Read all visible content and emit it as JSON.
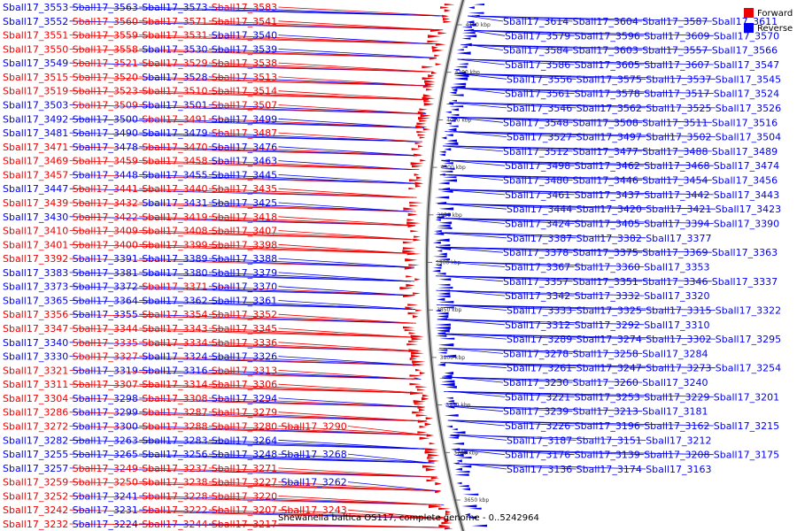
{
  "caption": "Shewanella baltica OS117, complete genome - 0..5242964",
  "legend": [
    {
      "name": "Forward",
      "color": "#ee0000"
    },
    {
      "name": "Reverse",
      "color": "#0000ee"
    }
  ],
  "colors": {
    "forward": "#ee0000",
    "reverse": "#0000ee",
    "backbone": "#555555"
  },
  "ticks": [
    "4150 kbp",
    "4100 kbp",
    "4050 kbp",
    "4000 kbp",
    "3950 kbp",
    "3900 kbp",
    "3850 kbp",
    "3800 kbp",
    "3750 kbp",
    "3700 kbp",
    "3650 kbp"
  ],
  "left_labels": [
    {
      "text": "Sball17_3553",
      "strand": "reverse"
    },
    {
      "text": "Sball17_3563",
      "strand": "reverse"
    },
    {
      "text": "Sball17_3573",
      "strand": "reverse"
    },
    {
      "text": "Sball17_3583",
      "strand": "forward"
    },
    {
      "text": "Sball17_3552",
      "strand": "reverse"
    },
    {
      "text": "Sball17_3560",
      "strand": "forward"
    },
    {
      "text": "Sball17_3571",
      "strand": "forward"
    },
    {
      "text": "Sball17_3541",
      "strand": "forward"
    },
    {
      "text": "Sball17_3551",
      "strand": "forward"
    },
    {
      "text": "Sball17_3559",
      "strand": "forward"
    },
    {
      "text": "Sball17_3531",
      "strand": "forward"
    },
    {
      "text": "Sball17_3540",
      "strand": "reverse"
    },
    {
      "text": "Sball17_3550",
      "strand": "forward"
    },
    {
      "text": "Sball17_3558",
      "strand": "forward"
    },
    {
      "text": "Sball17_3530",
      "strand": "reverse"
    },
    {
      "text": "Sball17_3539",
      "strand": "reverse"
    },
    {
      "text": "Sball17_3549",
      "strand": "reverse"
    },
    {
      "text": "Sball17_3521",
      "strand": "forward"
    },
    {
      "text": "Sball17_3529",
      "strand": "forward"
    },
    {
      "text": "Sball17_3538",
      "strand": "forward"
    },
    {
      "text": "Sball17_3515",
      "strand": "forward"
    },
    {
      "text": "Sball17_3520",
      "strand": "forward"
    },
    {
      "text": "Sball17_3528",
      "strand": "reverse"
    },
    {
      "text": "Sball17_3513",
      "strand": "forward"
    },
    {
      "text": "Sball17_3519",
      "strand": "forward"
    },
    {
      "text": "Sball17_3523",
      "strand": "forward"
    },
    {
      "text": "Sball17_3510",
      "strand": "forward"
    },
    {
      "text": "Sball17_3514",
      "strand": "forward"
    },
    {
      "text": "Sball17_3503",
      "strand": "reverse"
    },
    {
      "text": "Sball17_3509",
      "strand": "forward"
    },
    {
      "text": "Sball17_3501",
      "strand": "reverse"
    },
    {
      "text": "Sball17_3507",
      "strand": "forward"
    },
    {
      "text": "Sball17_3492",
      "strand": "reverse"
    },
    {
      "text": "Sball17_3500",
      "strand": "reverse"
    },
    {
      "text": "Sball17_3491",
      "strand": "forward"
    },
    {
      "text": "Sball17_3499",
      "strand": "reverse"
    },
    {
      "text": "Sball17_3481",
      "strand": "reverse"
    },
    {
      "text": "Sball17_3490",
      "strand": "reverse"
    },
    {
      "text": "Sball17_3479",
      "strand": "reverse"
    },
    {
      "text": "Sball17_3487",
      "strand": "forward"
    },
    {
      "text": "Sball17_3471",
      "strand": "forward"
    },
    {
      "text": "Sball17_3478",
      "strand": "reverse"
    },
    {
      "text": "Sball17_3470",
      "strand": "forward"
    },
    {
      "text": "Sball17_3476",
      "strand": "reverse"
    },
    {
      "text": "Sball17_3469",
      "strand": "forward"
    },
    {
      "text": "Sball17_3459",
      "strand": "forward"
    },
    {
      "text": "Sball17_3458",
      "strand": "forward"
    },
    {
      "text": "Sball17_3463",
      "strand": "reverse"
    },
    {
      "text": "Sball17_3457",
      "strand": "forward"
    },
    {
      "text": "Sball17_3448",
      "strand": "reverse"
    },
    {
      "text": "Sball17_3455",
      "strand": "reverse"
    },
    {
      "text": "Sball17_3445",
      "strand": "reverse"
    },
    {
      "text": "Sball17_3447",
      "strand": "reverse"
    },
    {
      "text": "Sball17_3441",
      "strand": "forward"
    },
    {
      "text": "Sball17_3440",
      "strand": "forward"
    },
    {
      "text": "Sball17_3435",
      "strand": "forward"
    },
    {
      "text": "Sball17_3439",
      "strand": "forward"
    },
    {
      "text": "Sball17_3432",
      "strand": "forward"
    },
    {
      "text": "Sball17_3431",
      "strand": "reverse"
    },
    {
      "text": "Sball17_3425",
      "strand": "reverse"
    },
    {
      "text": "Sball17_3430",
      "strand": "reverse"
    },
    {
      "text": "Sball17_3422",
      "strand": "forward"
    },
    {
      "text": "Sball17_3419",
      "strand": "forward"
    },
    {
      "text": "Sball17_3418",
      "strand": "forward"
    },
    {
      "text": "Sball17_3410",
      "strand": "forward"
    },
    {
      "text": "Sball17_3409",
      "strand": "forward"
    },
    {
      "text": "Sball17_3408",
      "strand": "forward"
    },
    {
      "text": "Sball17_3407",
      "strand": "forward"
    },
    {
      "text": "Sball17_3401",
      "strand": "forward"
    },
    {
      "text": "Sball17_3400",
      "strand": "forward"
    },
    {
      "text": "Sball17_3399",
      "strand": "forward"
    },
    {
      "text": "Sball17_3398",
      "strand": "forward"
    },
    {
      "text": "Sball17_3392",
      "strand": "forward"
    },
    {
      "text": "Sball17_3391",
      "strand": "reverse"
    },
    {
      "text": "Sball17_3389",
      "strand": "reverse"
    },
    {
      "text": "Sball17_3388",
      "strand": "reverse"
    },
    {
      "text": "Sball17_3383",
      "strand": "reverse"
    },
    {
      "text": "Sball17_3381",
      "strand": "reverse"
    },
    {
      "text": "Sball17_3380",
      "strand": "reverse"
    },
    {
      "text": "Sball17_3379",
      "strand": "reverse"
    },
    {
      "text": "Sball17_3373",
      "strand": "reverse"
    },
    {
      "text": "Sball17_3372",
      "strand": "reverse"
    },
    {
      "text": "Sball17_3371",
      "strand": "forward"
    },
    {
      "text": "Sball17_3370",
      "strand": "reverse"
    },
    {
      "text": "Sball17_3365",
      "strand": "reverse"
    },
    {
      "text": "Sball17_3364",
      "strand": "reverse"
    },
    {
      "text": "Sball17_3362",
      "strand": "reverse"
    },
    {
      "text": "Sball17_3361",
      "strand": "reverse"
    },
    {
      "text": "Sball17_3356",
      "strand": "forward"
    },
    {
      "text": "Sball17_3355",
      "strand": "reverse"
    },
    {
      "text": "Sball17_3354",
      "strand": "forward"
    },
    {
      "text": "Sball17_3352",
      "strand": "forward"
    },
    {
      "text": "Sball17_3347",
      "strand": "forward"
    },
    {
      "text": "Sball17_3344",
      "strand": "forward"
    },
    {
      "text": "Sball17_3343",
      "strand": "forward"
    },
    {
      "text": "Sball17_3345",
      "strand": "forward"
    },
    {
      "text": "Sball17_3340",
      "strand": "reverse"
    },
    {
      "text": "Sball17_3335",
      "strand": "forward"
    },
    {
      "text": "Sball17_3334",
      "strand": "forward"
    },
    {
      "text": "Sball17_3336",
      "strand": "forward"
    },
    {
      "text": "Sball17_3330",
      "strand": "reverse"
    },
    {
      "text": "Sball17_3327",
      "strand": "forward"
    },
    {
      "text": "Sball17_3324",
      "strand": "reverse"
    },
    {
      "text": "Sball17_3326",
      "strand": "reverse"
    },
    {
      "text": "Sball17_3321",
      "strand": "forward"
    },
    {
      "text": "Sball17_3319",
      "strand": "reverse"
    },
    {
      "text": "Sball17_3316",
      "strand": "reverse"
    },
    {
      "text": "Sball17_3313",
      "strand": "forward"
    },
    {
      "text": "Sball17_3311",
      "strand": "forward"
    },
    {
      "text": "Sball17_3307",
      "strand": "forward"
    },
    {
      "text": "Sball17_3314",
      "strand": "forward"
    },
    {
      "text": "Sball17_3306",
      "strand": "forward"
    },
    {
      "text": "Sball17_3304",
      "strand": "forward"
    },
    {
      "text": "Sball17_3298",
      "strand": "reverse"
    },
    {
      "text": "Sball17_3308",
      "strand": "forward"
    },
    {
      "text": "Sball17_3294",
      "strand": "reverse"
    },
    {
      "text": "Sball17_3286",
      "strand": "forward"
    },
    {
      "text": "Sball17_3299",
      "strand": "reverse"
    },
    {
      "text": "Sball17_3287",
      "strand": "forward"
    },
    {
      "text": "Sball17_3279",
      "strand": "forward"
    },
    {
      "text": "Sball17_3272",
      "strand": "forward"
    },
    {
      "text": "Sball17_3300",
      "strand": "reverse"
    },
    {
      "text": "Sball17_3288",
      "strand": "forward"
    },
    {
      "text": "Sball17_3280",
      "strand": "forward"
    },
    {
      "text": "Sball17_3290",
      "strand": "forward"
    },
    {
      "text": "Sball17_3282",
      "strand": "reverse"
    },
    {
      "text": "Sball17_3263",
      "strand": "reverse"
    },
    {
      "text": "Sball17_3283",
      "strand": "reverse"
    },
    {
      "text": "Sball17_3264",
      "strand": "reverse"
    },
    {
      "text": "Sball17_3255",
      "strand": "reverse"
    },
    {
      "text": "Sball17_3265",
      "strand": "reverse"
    },
    {
      "text": "Sball17_3256",
      "strand": "reverse"
    },
    {
      "text": "Sball17_3248",
      "strand": "reverse"
    },
    {
      "text": "Sball17_3268",
      "strand": "reverse"
    },
    {
      "text": "Sball17_3257",
      "strand": "reverse"
    },
    {
      "text": "Sball17_3249",
      "strand": "forward"
    },
    {
      "text": "Sball17_3237",
      "strand": "forward"
    },
    {
      "text": "Sball17_3271",
      "strand": "forward"
    },
    {
      "text": "Sball17_3259",
      "strand": "forward"
    },
    {
      "text": "Sball17_3250",
      "strand": "forward"
    },
    {
      "text": "Sball17_3238",
      "strand": "forward"
    },
    {
      "text": "Sball17_3227",
      "strand": "forward"
    },
    {
      "text": "Sball17_3262",
      "strand": "reverse"
    },
    {
      "text": "Sball17_3252",
      "strand": "forward"
    },
    {
      "text": "Sball17_3241",
      "strand": "reverse"
    },
    {
      "text": "Sball17_3228",
      "strand": "forward"
    },
    {
      "text": "Sball17_3220",
      "strand": "forward"
    },
    {
      "text": "Sball17_3242",
      "strand": "forward"
    },
    {
      "text": "Sball17_3231",
      "strand": "reverse"
    },
    {
      "text": "Sball17_3222",
      "strand": "forward"
    },
    {
      "text": "Sball17_3207",
      "strand": "forward"
    },
    {
      "text": "Sball17_3243",
      "strand": "forward"
    },
    {
      "text": "Sball17_3232",
      "strand": "forward"
    },
    {
      "text": "Sball17_3224",
      "strand": "reverse"
    },
    {
      "text": "Sball17_3244",
      "strand": "forward"
    },
    {
      "text": "Sball17_3217",
      "strand": "forward"
    }
  ],
  "right_labels": [
    {
      "text": "Sball17_3614",
      "strand": "reverse"
    },
    {
      "text": "Sball17_3604",
      "strand": "reverse"
    },
    {
      "text": "Sball17_3587",
      "strand": "reverse"
    },
    {
      "text": "Sball17_3611",
      "strand": "reverse"
    },
    {
      "text": "Sball17_3579",
      "strand": "reverse"
    },
    {
      "text": "Sball17_3596",
      "strand": "reverse"
    },
    {
      "text": "Sball17_3609",
      "strand": "reverse"
    },
    {
      "text": "Sball17_3570",
      "strand": "reverse"
    },
    {
      "text": "Sball17_3584",
      "strand": "reverse"
    },
    {
      "text": "Sball17_3603",
      "strand": "reverse"
    },
    {
      "text": "Sball17_3557",
      "strand": "reverse"
    },
    {
      "text": "Sball17_3566",
      "strand": "reverse"
    },
    {
      "text": "Sball17_3586",
      "strand": "reverse"
    },
    {
      "text": "Sball17_3605",
      "strand": "reverse"
    },
    {
      "text": "Sball17_3607",
      "strand": "reverse"
    },
    {
      "text": "Sball17_3547",
      "strand": "reverse"
    },
    {
      "text": "Sball17_3556",
      "strand": "reverse"
    },
    {
      "text": "Sball17_3575",
      "strand": "reverse"
    },
    {
      "text": "Sball17_3537",
      "strand": "reverse"
    },
    {
      "text": "Sball17_3545",
      "strand": "reverse"
    },
    {
      "text": "Sball17_3561",
      "strand": "reverse"
    },
    {
      "text": "Sball17_3578",
      "strand": "reverse"
    },
    {
      "text": "Sball17_3517",
      "strand": "reverse"
    },
    {
      "text": "Sball17_3524",
      "strand": "reverse"
    },
    {
      "text": "Sball17_3546",
      "strand": "reverse"
    },
    {
      "text": "Sball17_3562",
      "strand": "reverse"
    },
    {
      "text": "Sball17_3525",
      "strand": "reverse"
    },
    {
      "text": "Sball17_3526",
      "strand": "reverse"
    },
    {
      "text": "Sball17_3548",
      "strand": "reverse"
    },
    {
      "text": "Sball17_3508",
      "strand": "reverse"
    },
    {
      "text": "Sball17_3511",
      "strand": "reverse"
    },
    {
      "text": "Sball17_3516",
      "strand": "reverse"
    },
    {
      "text": "Sball17_3527",
      "strand": "reverse"
    },
    {
      "text": "Sball17_3497",
      "strand": "reverse"
    },
    {
      "text": "Sball17_3502",
      "strand": "reverse"
    },
    {
      "text": "Sball17_3504",
      "strand": "reverse"
    },
    {
      "text": "Sball17_3512",
      "strand": "reverse"
    },
    {
      "text": "Sball17_3477",
      "strand": "reverse"
    },
    {
      "text": "Sball17_3488",
      "strand": "reverse"
    },
    {
      "text": "Sball17_3489",
      "strand": "reverse"
    },
    {
      "text": "Sball17_3498",
      "strand": "reverse"
    },
    {
      "text": "Sball17_3462",
      "strand": "reverse"
    },
    {
      "text": "Sball17_3468",
      "strand": "reverse"
    },
    {
      "text": "Sball17_3474",
      "strand": "reverse"
    },
    {
      "text": "Sball17_3480",
      "strand": "reverse"
    },
    {
      "text": "Sball17_3446",
      "strand": "reverse"
    },
    {
      "text": "Sball17_3454",
      "strand": "reverse"
    },
    {
      "text": "Sball17_3456",
      "strand": "reverse"
    },
    {
      "text": "Sball17_3461",
      "strand": "reverse"
    },
    {
      "text": "Sball17_3437",
      "strand": "reverse"
    },
    {
      "text": "Sball17_3442",
      "strand": "reverse"
    },
    {
      "text": "Sball17_3443",
      "strand": "reverse"
    },
    {
      "text": "Sball17_3444",
      "strand": "reverse"
    },
    {
      "text": "Sball17_3420",
      "strand": "reverse"
    },
    {
      "text": "Sball17_3421",
      "strand": "reverse"
    },
    {
      "text": "Sball17_3423",
      "strand": "reverse"
    },
    {
      "text": "Sball17_3424",
      "strand": "reverse"
    },
    {
      "text": "Sball17_3405",
      "strand": "reverse"
    },
    {
      "text": "Sball17_3394",
      "strand": "reverse"
    },
    {
      "text": "Sball17_3390",
      "strand": "reverse"
    },
    {
      "text": "Sball17_3387",
      "strand": "reverse"
    },
    {
      "text": "Sball17_3382",
      "strand": "reverse"
    },
    {
      "text": "Sball17_3377",
      "strand": "reverse"
    },
    {
      "text": "Sball17_3378",
      "strand": "reverse"
    },
    {
      "text": "Sball17_3375",
      "strand": "reverse"
    },
    {
      "text": "Sball17_3369",
      "strand": "reverse"
    },
    {
      "text": "Sball17_3363",
      "strand": "reverse"
    },
    {
      "text": "Sball17_3367",
      "strand": "reverse"
    },
    {
      "text": "Sball17_3360",
      "strand": "reverse"
    },
    {
      "text": "Sball17_3353",
      "strand": "reverse"
    },
    {
      "text": "Sball17_3357",
      "strand": "reverse"
    },
    {
      "text": "Sball17_3351",
      "strand": "reverse"
    },
    {
      "text": "Sball17_3346",
      "strand": "reverse"
    },
    {
      "text": "Sball17_3337",
      "strand": "reverse"
    },
    {
      "text": "Sball17_3342",
      "strand": "reverse"
    },
    {
      "text": "Sball17_3332",
      "strand": "reverse"
    },
    {
      "text": "Sball17_3320",
      "strand": "reverse"
    },
    {
      "text": "Sball17_3333",
      "strand": "reverse"
    },
    {
      "text": "Sball17_3325",
      "strand": "reverse"
    },
    {
      "text": "Sball17_3315",
      "strand": "reverse"
    },
    {
      "text": "Sball17_3322",
      "strand": "reverse"
    },
    {
      "text": "Sball17_3312",
      "strand": "reverse"
    },
    {
      "text": "Sball17_3292",
      "strand": "reverse"
    },
    {
      "text": "Sball17_3310",
      "strand": "reverse"
    },
    {
      "text": "Sball17_3289",
      "strand": "reverse"
    },
    {
      "text": "Sball17_3274",
      "strand": "reverse"
    },
    {
      "text": "Sball17_3302",
      "strand": "reverse"
    },
    {
      "text": "Sball17_3295",
      "strand": "reverse"
    },
    {
      "text": "Sball17_3278",
      "strand": "reverse"
    },
    {
      "text": "Sball17_3258",
      "strand": "reverse"
    },
    {
      "text": "Sball17_3284",
      "strand": "reverse"
    },
    {
      "text": "Sball17_3261",
      "strand": "reverse"
    },
    {
      "text": "Sball17_3247",
      "strand": "reverse"
    },
    {
      "text": "Sball17_3273",
      "strand": "reverse"
    },
    {
      "text": "Sball17_3254",
      "strand": "reverse"
    },
    {
      "text": "Sball17_3230",
      "strand": "reverse"
    },
    {
      "text": "Sball17_3260",
      "strand": "reverse"
    },
    {
      "text": "Sball17_3240",
      "strand": "reverse"
    },
    {
      "text": "Sball17_3221",
      "strand": "reverse"
    },
    {
      "text": "Sball17_3253",
      "strand": "reverse"
    },
    {
      "text": "Sball17_3229",
      "strand": "reverse"
    },
    {
      "text": "Sball17_3201",
      "strand": "reverse"
    },
    {
      "text": "Sball17_3239",
      "strand": "reverse"
    },
    {
      "text": "Sball17_3213",
      "strand": "reverse"
    },
    {
      "text": "Sball17_3181",
      "strand": "reverse"
    },
    {
      "text": "Sball17_3226",
      "strand": "reverse"
    },
    {
      "text": "Sball17_3196",
      "strand": "reverse"
    },
    {
      "text": "Sball17_3162",
      "strand": "reverse"
    },
    {
      "text": "Sball17_3215",
      "strand": "reverse"
    },
    {
      "text": "Sball17_3187",
      "strand": "reverse"
    },
    {
      "text": "Sball17_3151",
      "strand": "reverse"
    },
    {
      "text": "Sball17_3212",
      "strand": "reverse"
    },
    {
      "text": "Sball17_3176",
      "strand": "reverse"
    },
    {
      "text": "Sball17_3139",
      "strand": "reverse"
    },
    {
      "text": "Sball17_3208",
      "strand": "reverse"
    },
    {
      "text": "Sball17_3175",
      "strand": "reverse"
    },
    {
      "text": "Sball17_3136",
      "strand": "reverse"
    },
    {
      "text": "Sball17_3174",
      "strand": "reverse"
    },
    {
      "text": "Sball17_3163",
      "strand": "reverse"
    }
  ]
}
